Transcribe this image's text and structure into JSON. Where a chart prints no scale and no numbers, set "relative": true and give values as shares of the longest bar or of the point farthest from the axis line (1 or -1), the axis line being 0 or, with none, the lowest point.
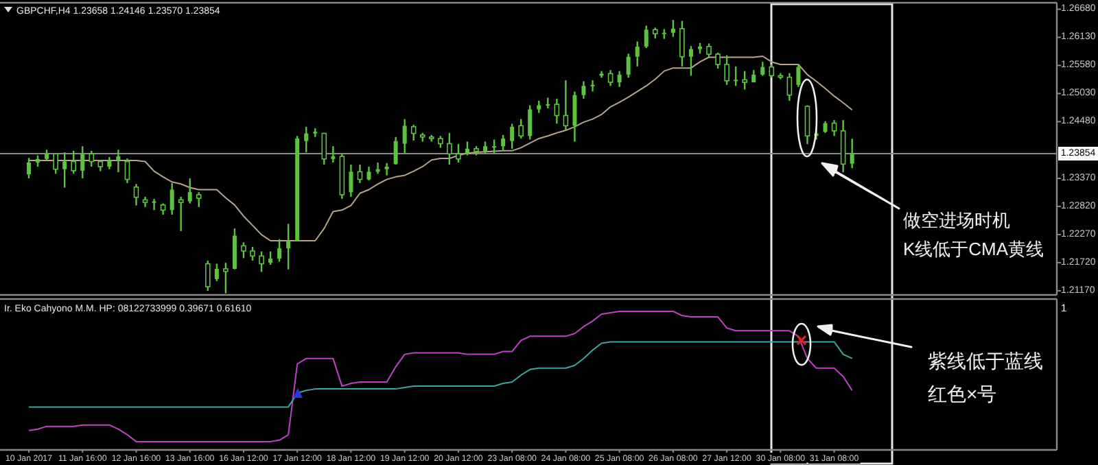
{
  "chart_data": [
    {
      "type": "candlestick",
      "title": "GBPCHF,H4  1.23658 1.24146 1.23570 1.23854",
      "color": "#5cc43c",
      "categories": [
        null,
        null,
        null,
        null,
        null,
        null,
        null,
        null,
        null,
        null,
        null,
        null,
        null,
        null,
        null,
        null,
        null,
        null,
        null,
        null,
        null,
        null,
        null,
        null,
        null,
        null,
        null,
        null,
        null,
        null,
        null,
        null,
        null,
        null,
        null,
        null,
        null,
        null,
        null,
        null,
        null,
        null,
        null,
        null,
        null,
        null,
        null,
        null,
        null,
        null,
        null,
        null,
        null,
        null,
        null,
        null,
        null,
        null,
        null,
        null,
        null,
        null,
        null,
        null,
        null,
        null,
        null,
        null,
        null,
        null,
        null,
        null,
        null,
        null,
        null,
        null,
        null,
        null,
        null,
        null,
        null,
        null,
        null,
        null,
        null,
        null,
        null,
        null,
        null,
        null,
        null,
        null,
        null
      ],
      "tick_labels": "y",
      "ohlc": [
        [
          1.2345,
          1.2377,
          1.2337,
          1.2368
        ],
        [
          1.2368,
          1.2382,
          1.236,
          1.2375
        ],
        [
          1.2375,
          1.2393,
          1.2373,
          1.2385
        ],
        [
          1.2385,
          1.2386,
          1.2346,
          1.2355
        ],
        [
          1.2355,
          1.2388,
          1.2319,
          1.237
        ],
        [
          1.237,
          1.2391,
          1.2346,
          1.2352
        ],
        [
          1.2352,
          1.24,
          1.2337,
          1.2385
        ],
        [
          1.2385,
          1.2391,
          1.236,
          1.237
        ],
        [
          1.237,
          1.2373,
          1.2351,
          1.236
        ],
        [
          1.236,
          1.2379,
          1.2355,
          1.2372
        ],
        [
          1.2372,
          1.2393,
          1.2349,
          1.238
        ],
        [
          1.237,
          1.2376,
          1.2328,
          1.2335
        ],
        [
          1.232,
          1.2326,
          1.2284,
          1.23
        ],
        [
          1.2295,
          1.2301,
          1.2281,
          1.229
        ],
        [
          1.229,
          1.2297,
          1.2275,
          1.2292
        ],
        [
          1.2285,
          1.2288,
          1.2266,
          1.2275
        ],
        [
          1.2275,
          1.2328,
          1.2266,
          1.2315
        ],
        [
          1.2295,
          1.2301,
          1.2234,
          1.229
        ],
        [
          1.2292,
          1.2337,
          1.2288,
          1.231
        ],
        [
          1.2305,
          1.231,
          1.2281,
          1.2298
        ],
        [
          1.217,
          1.2176,
          1.2117,
          1.2125
        ],
        [
          1.214,
          1.217,
          1.2136,
          1.216
        ],
        [
          1.216,
          1.2172,
          1.2112,
          1.2155
        ],
        [
          1.216,
          1.2239,
          1.2159,
          1.2225
        ],
        [
          1.2205,
          1.2212,
          1.2181,
          1.2195
        ],
        [
          1.2195,
          1.2203,
          1.2176,
          1.2185
        ],
        [
          1.2185,
          1.2194,
          1.2154,
          1.217
        ],
        [
          1.2172,
          1.2194,
          1.2168,
          1.218
        ],
        [
          1.218,
          1.2218,
          1.2174,
          1.22
        ],
        [
          1.22,
          1.2248,
          1.2159,
          1.2215
        ],
        [
          1.2215,
          1.242,
          1.2215,
          1.2415
        ],
        [
          1.241,
          1.2438,
          1.2388,
          1.2425
        ],
        [
          1.2425,
          1.2435,
          1.2418,
          1.2428
        ],
        [
          1.2425,
          1.2426,
          1.2364,
          1.2375
        ],
        [
          1.2375,
          1.24,
          1.2368,
          1.238
        ],
        [
          1.238,
          1.2386,
          1.2297,
          1.2305
        ],
        [
          1.231,
          1.2364,
          1.2301,
          1.235
        ],
        [
          1.235,
          1.2364,
          1.2328,
          1.2335
        ],
        [
          1.2335,
          1.236,
          1.2333,
          1.235
        ],
        [
          1.235,
          1.2368,
          1.2346,
          1.2355
        ],
        [
          1.2355,
          1.2367,
          1.2343,
          1.236
        ],
        [
          1.2365,
          1.2418,
          1.2364,
          1.241
        ],
        [
          1.2405,
          1.2453,
          1.2386,
          1.244
        ],
        [
          1.2438,
          1.2442,
          1.2411,
          1.2425
        ],
        [
          1.2422,
          1.2426,
          1.2409,
          1.2418
        ],
        [
          1.2418,
          1.2422,
          1.2409,
          1.2415
        ],
        [
          1.2415,
          1.242,
          1.2397,
          1.2405
        ],
        [
          1.2405,
          1.2426,
          1.2364,
          1.2385
        ],
        [
          1.2385,
          1.2404,
          1.2368,
          1.2375
        ],
        [
          1.2385,
          1.2409,
          1.2382,
          1.2395
        ],
        [
          1.2395,
          1.24,
          1.2382,
          1.239
        ],
        [
          1.239,
          1.2409,
          1.2386,
          1.24
        ],
        [
          1.2398,
          1.2413,
          1.2386,
          1.24
        ],
        [
          1.24,
          1.2422,
          1.2391,
          1.2415
        ],
        [
          1.241,
          1.2444,
          1.2395,
          1.2438
        ],
        [
          1.244,
          1.2453,
          1.2415,
          1.242
        ],
        [
          1.242,
          1.248,
          1.2413,
          1.2472
        ],
        [
          1.2472,
          1.2489,
          1.2465,
          1.248
        ],
        [
          1.248,
          1.2495,
          1.2474,
          1.2482
        ],
        [
          1.2482,
          1.2493,
          1.2444,
          1.246
        ],
        [
          1.246,
          1.2529,
          1.2431,
          1.244
        ],
        [
          1.244,
          1.2507,
          1.2409,
          1.25
        ],
        [
          1.25,
          1.2527,
          1.2493,
          1.2518
        ],
        [
          1.2518,
          1.2529,
          1.2507,
          1.252
        ],
        [
          1.2538,
          1.2547,
          1.2534,
          1.2542
        ],
        [
          1.2542,
          1.2549,
          1.2518,
          1.2525
        ],
        [
          1.2525,
          1.2547,
          1.2516,
          1.254
        ],
        [
          1.254,
          1.2581,
          1.2534,
          1.2575
        ],
        [
          1.2575,
          1.2605,
          1.2556,
          1.2595
        ],
        [
          1.2595,
          1.2636,
          1.2592,
          1.2628
        ],
        [
          1.2628,
          1.2632,
          1.2611,
          1.262
        ],
        [
          1.262,
          1.2629,
          1.261,
          1.2622
        ],
        [
          1.2622,
          1.2647,
          1.2614,
          1.263
        ],
        [
          1.263,
          1.2645,
          1.2556,
          1.2575
        ],
        [
          1.2575,
          1.2596,
          1.2538,
          1.259
        ],
        [
          1.259,
          1.2602,
          1.2581,
          1.2595
        ],
        [
          1.2595,
          1.2601,
          1.2574,
          1.258
        ],
        [
          1.258,
          1.2583,
          1.2552,
          1.256
        ],
        [
          1.256,
          1.2578,
          1.252,
          1.2528
        ],
        [
          1.2528,
          1.2556,
          1.2518,
          1.253
        ],
        [
          1.253,
          1.2547,
          1.2511,
          1.2525
        ],
        [
          1.2525,
          1.2549,
          1.2525,
          1.254
        ],
        [
          1.254,
          1.2565,
          1.2538,
          1.2555
        ],
        [
          1.2555,
          1.256,
          1.2534,
          1.2538
        ],
        [
          1.2538,
          1.2543,
          1.2531,
          1.2535
        ],
        [
          1.2535,
          1.2543,
          1.2489,
          1.25
        ],
        [
          1.252,
          1.256,
          1.2516,
          1.2555
        ],
        [
          1.2478,
          1.248,
          1.2404,
          1.242
        ],
        [
          1.242,
          1.2435,
          1.2413,
          1.2425
        ],
        [
          1.2428,
          1.2449,
          1.2426,
          1.2445
        ],
        [
          1.2445,
          1.2451,
          1.242,
          1.243
        ],
        [
          1.243,
          1.2451,
          1.2349,
          1.2365
        ],
        [
          1.23658,
          1.24146,
          1.2357,
          1.23854
        ]
      ],
      "series": [
        {
          "type": "line",
          "color": "#b8a48c",
          "values": [
            1.2372,
            1.2372,
            1.2372,
            1.2372,
            1.2372,
            1.2372,
            1.2372,
            1.2372,
            1.2372,
            1.2372,
            1.2372,
            1.2372,
            1.2372,
            1.237,
            1.2351,
            1.234,
            1.233,
            1.2326,
            1.2319,
            1.2315,
            1.2315,
            1.2315,
            1.2299,
            1.2285,
            1.2263,
            1.2245,
            1.2227,
            1.2215,
            1.2215,
            1.2215,
            1.2215,
            1.2215,
            1.2215,
            1.2239,
            1.2272,
            1.2275,
            1.2284,
            1.2308,
            1.2315,
            1.2326,
            1.2335,
            1.234,
            1.2343,
            1.2351,
            1.236,
            1.2373,
            1.2376,
            1.2376,
            1.2382,
            1.2386,
            1.2388,
            1.2389,
            1.239,
            1.2391,
            1.2391,
            1.2397,
            1.2406,
            1.2415,
            1.242,
            1.2426,
            1.2431,
            1.2438,
            1.2447,
            1.2453,
            1.2462,
            1.2477,
            1.2486,
            1.2496,
            1.2507,
            1.2518,
            1.2531,
            1.2547,
            1.2553,
            1.2553,
            1.2553,
            1.2565,
            1.2574,
            1.2574,
            1.2574,
            1.2574,
            1.2574,
            1.2574,
            1.2576,
            1.2565,
            1.256,
            1.256,
            1.256,
            1.254,
            1.2527,
            1.2513,
            1.2498,
            1.2485,
            1.2471
          ]
        }
      ],
      "ylim": [
        1.2109,
        1.2678
      ],
      "yticks": [
        {
          "value": 1.2668,
          "label": "1.26680"
        },
        {
          "value": 1.2613,
          "label": "1.26130"
        },
        {
          "value": 1.2558,
          "label": "1.25580"
        },
        {
          "value": 1.2503,
          "label": "1.25030"
        },
        {
          "value": 1.2448,
          "label": "1.24480"
        },
        {
          "value": 1.2337,
          "label": "1.23370"
        },
        {
          "value": 1.2282,
          "label": "1.22820"
        },
        {
          "value": 1.2227,
          "label": "1.22270"
        },
        {
          "value": 1.2172,
          "label": "1.21720"
        },
        {
          "value": 1.2117,
          "label": "1.21170"
        }
      ],
      "ref_lines": [
        {
          "axis": "y",
          "value": 1.23854,
          "label": "1.23854",
          "color": "#8c8c8c"
        }
      ],
      "annotations": [
        "做空进场时机",
        "K线低于CMA黄线"
      ]
    },
    {
      "type": "line",
      "title": "Ir. Eko Cahyono M.M. HP: 08122733999  0.39671 0.61610",
      "relative": true,
      "categories": [
        "10 Jan 2017",
        null,
        null,
        null,
        null,
        null,
        "11 Jan 16:00",
        null,
        null,
        null,
        null,
        null,
        "12 Jan 16:00",
        null,
        null,
        null,
        null,
        null,
        "13 Jan 16:00",
        null,
        null,
        null,
        null,
        null,
        "16 Jan 12:00",
        null,
        null,
        null,
        null,
        null,
        "17 Jan 12:00",
        null,
        null,
        null,
        null,
        null,
        "18 Jan 12:00",
        null,
        null,
        null,
        null,
        null,
        "19 Jan 12:00",
        null,
        null,
        null,
        null,
        null,
        "20 Jan 12:00",
        null,
        null,
        null,
        null,
        null,
        "23 Jan 08:00",
        null,
        null,
        null,
        null,
        null,
        "24 Jan 08:00",
        null,
        null,
        null,
        null,
        null,
        "25 Jan 08:00",
        null,
        null,
        null,
        null,
        null,
        "26 Jan 08:00",
        null,
        null,
        null,
        null,
        null,
        "27 Jan 12:00",
        null,
        null,
        null,
        null,
        null,
        "30 Jan 08:00",
        null,
        null,
        null,
        null,
        null,
        "31 Jan 08:00",
        null,
        null
      ],
      "tick_labels": "x",
      "series": [
        {
          "color": "#c040c8",
          "values": [
            0.14,
            0.15,
            0.17,
            0.17,
            0.17,
            0.17,
            0.18,
            0.18,
            0.18,
            0.18,
            0.15,
            0.11,
            0.06,
            0.06,
            0.06,
            0.06,
            0.06,
            0.06,
            0.06,
            0.06,
            0.06,
            0.06,
            0.06,
            0.06,
            0.06,
            0.06,
            0.06,
            0.06,
            0.07,
            0.11,
            0.62,
            0.66,
            0.66,
            0.66,
            0.66,
            0.46,
            0.48,
            0.49,
            0.49,
            0.49,
            0.49,
            0.6,
            0.69,
            0.7,
            0.7,
            0.7,
            0.7,
            0.7,
            0.7,
            0.69,
            0.69,
            0.69,
            0.69,
            0.71,
            0.71,
            0.79,
            0.82,
            0.82,
            0.82,
            0.82,
            0.82,
            0.84,
            0.89,
            0.93,
            0.98,
            0.99,
            1,
            1,
            1,
            1,
            1,
            1,
            1,
            0.97,
            0.96,
            0.96,
            0.96,
            0.96,
            0.88,
            0.86,
            0.86,
            0.86,
            0.86,
            0.86,
            0.86,
            0.86,
            0.82,
            0.66,
            0.59,
            0.59,
            0.59,
            0.53,
            0.43
          ]
        },
        {
          "color": "#3aa89c",
          "values": [
            0.31,
            0.31,
            0.31,
            0.31,
            0.31,
            0.31,
            0.31,
            0.31,
            0.31,
            0.31,
            0.31,
            0.31,
            0.31,
            0.31,
            0.31,
            0.31,
            0.31,
            0.31,
            0.31,
            0.31,
            0.31,
            0.31,
            0.31,
            0.31,
            0.31,
            0.31,
            0.31,
            0.31,
            0.31,
            0.31,
            0.41,
            0.43,
            0.44,
            0.44,
            0.44,
            0.44,
            0.44,
            0.44,
            0.44,
            0.44,
            0.44,
            0.44,
            0.45,
            0.46,
            0.46,
            0.46,
            0.46,
            0.46,
            0.46,
            0.46,
            0.46,
            0.46,
            0.46,
            0.48,
            0.49,
            0.54,
            0.58,
            0.59,
            0.59,
            0.59,
            0.59,
            0.61,
            0.66,
            0.72,
            0.77,
            0.78,
            0.78,
            0.78,
            0.78,
            0.78,
            0.78,
            0.78,
            0.78,
            0.78,
            0.78,
            0.78,
            0.78,
            0.78,
            0.78,
            0.78,
            0.78,
            0.78,
            0.78,
            0.78,
            0.78,
            0.78,
            0.78,
            0.78,
            0.78,
            0.78,
            0.78,
            0.69,
            0.66
          ]
        }
      ],
      "annotations": [
        "1",
        "紫线低于蓝线",
        "红色×号"
      ]
    }
  ]
}
